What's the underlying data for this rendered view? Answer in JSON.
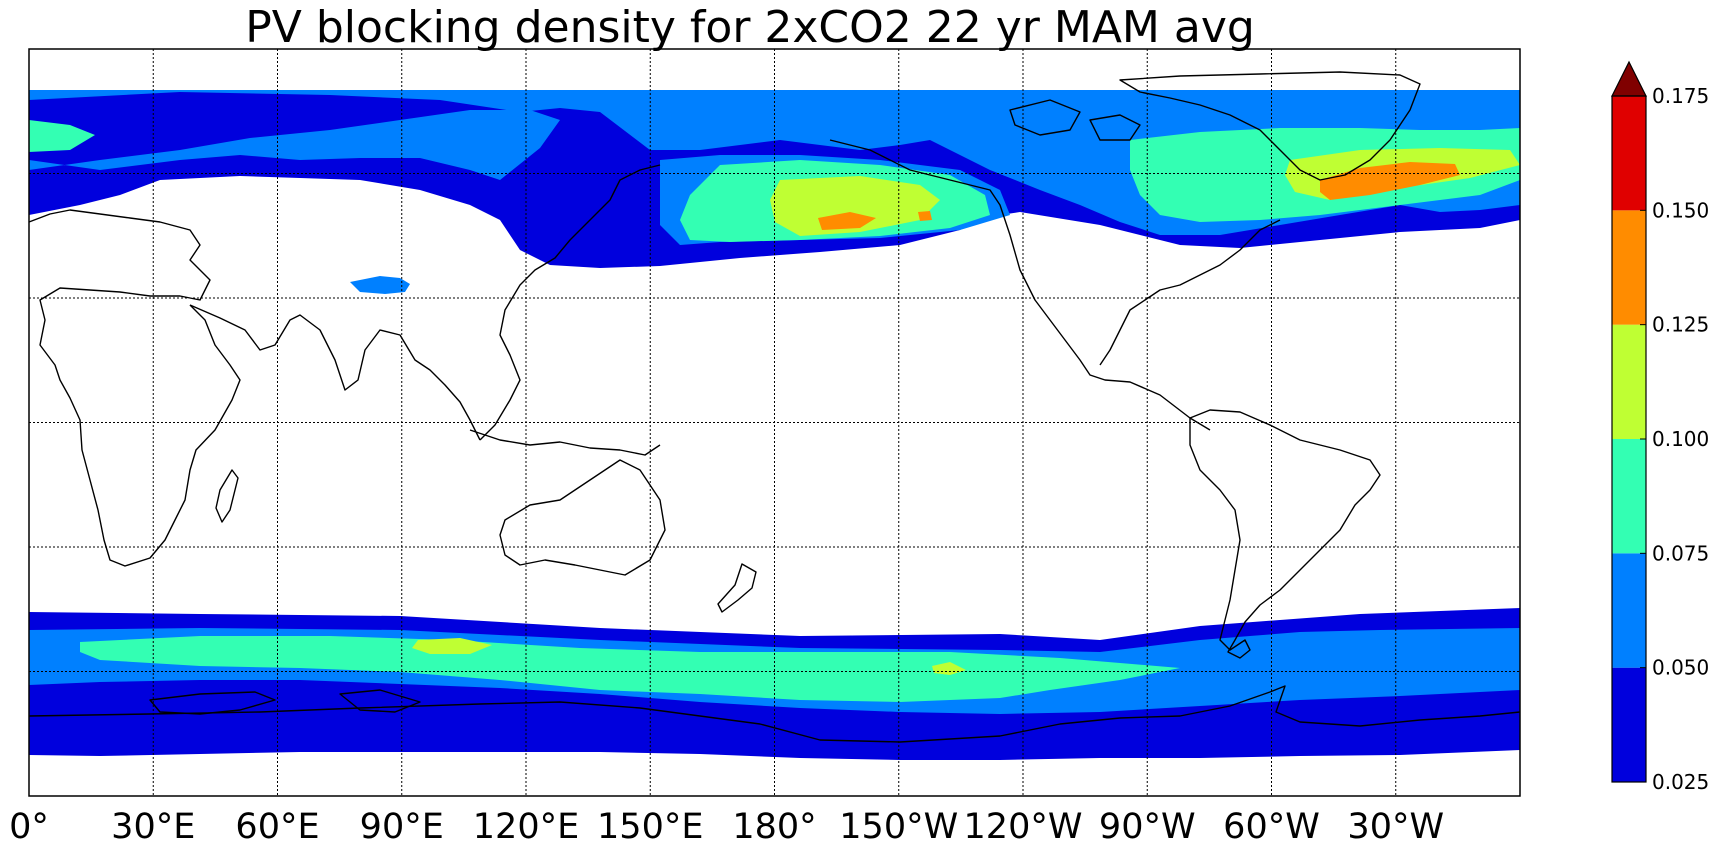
{
  "title": "PV blocking density for 2xCO2 22 yr MAM avg",
  "x_tick_labels": [
    "0°",
    "30°E",
    "60°E",
    "90°E",
    "120°E",
    "150°E",
    "180°",
    "150°W",
    "120°W",
    "90°W",
    "60°W",
    "30°W"
  ],
  "colorbar": {
    "tick_labels": [
      "0.025",
      "0.050",
      "0.075",
      "0.100",
      "0.125",
      "0.150",
      "0.175"
    ],
    "levels": [
      0.025,
      0.05,
      0.075,
      0.1,
      0.125,
      0.15,
      0.175
    ],
    "colors": [
      "#0000dd",
      "#0080ff",
      "#33ffb3",
      "#bfff33",
      "#ff8c00",
      "#e00000"
    ],
    "extend_color": "#800000",
    "extend": "max"
  },
  "colors": {
    "coastline": "#000000",
    "grid": "#000000",
    "background": "#ffffff"
  }
}
